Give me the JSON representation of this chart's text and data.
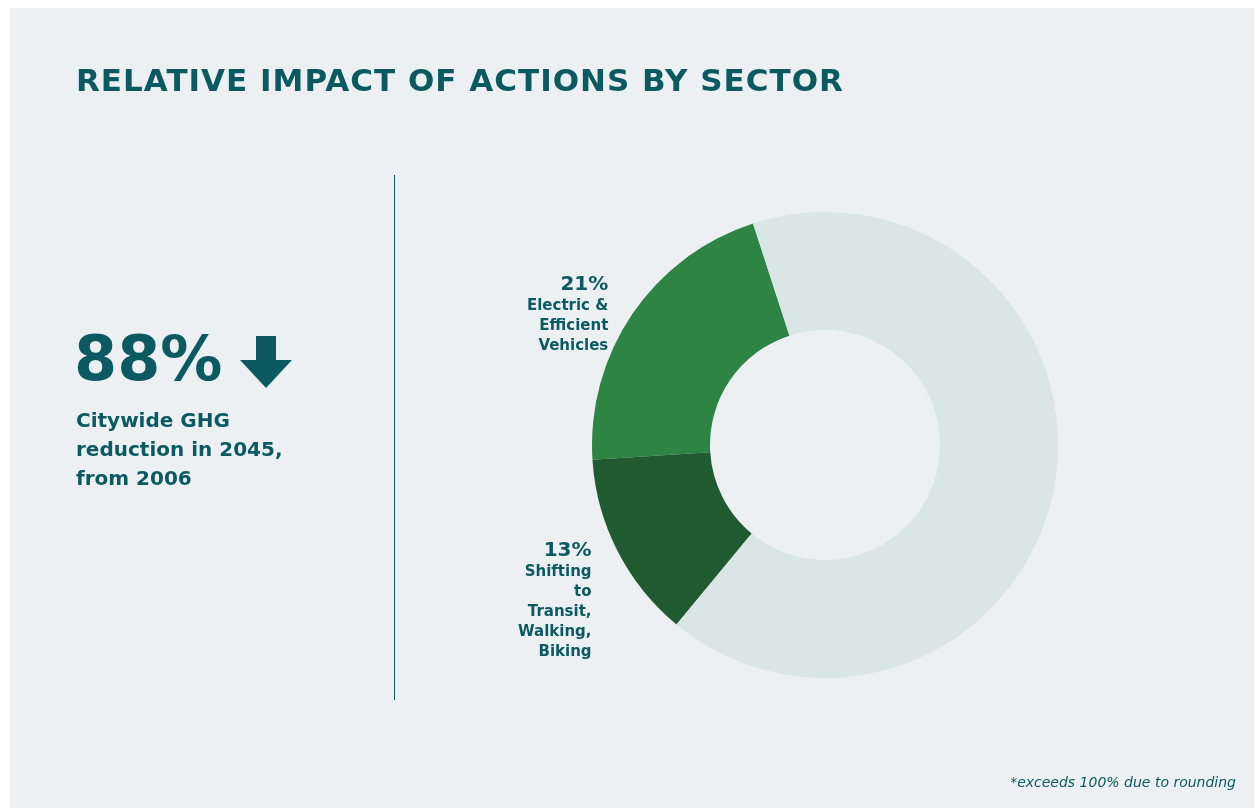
{
  "chart_data": {
    "type": "donut",
    "title": "RELATIVE IMPACT OF ACTIONS BY SECTOR",
    "categories": [
      "Electric & Efficient Vehicles",
      "Shifting to Transit, Walking, Biking",
      null
    ],
    "values": [
      21,
      13,
      66
    ],
    "value_labels": [
      "21%",
      "13%",
      null
    ],
    "colors": [
      "#2e8543",
      "#1f5a30",
      "#dae6e5"
    ],
    "annotations": [
      "88%",
      "Citywide GHG reduction in 2045, from 2006",
      "*exceeds 100% due to rounding"
    ]
  }
}
